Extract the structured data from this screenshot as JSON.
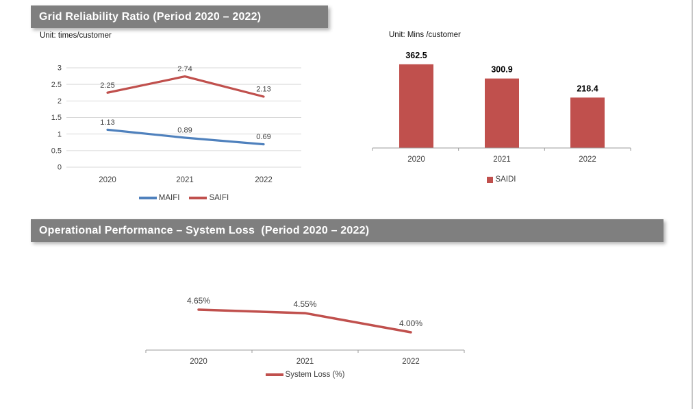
{
  "colors": {
    "header_bg": "#7f7f7f",
    "header_text": "#ffffff",
    "grid": "#d9d9d9",
    "axis": "#9b9b9b",
    "tick_text": "#404040",
    "data_label": "#404040",
    "bar_value_label": "#000000",
    "page_border": "#c6c6c6",
    "line_blue": "#4F81BD",
    "line_red": "#C0504D"
  },
  "sections": [
    {
      "title": "Grid Reliability Ratio (Period 2020 – 2022)"
    },
    {
      "title": "Operational Performance – System Loss  (Period 2020 – 2022)"
    }
  ],
  "units": {
    "left_chart": "Unit: times/customer",
    "right_chart": "Unit: Mins /customer"
  },
  "chart_data": [
    {
      "id": "grid-reliability-lines",
      "type": "line",
      "title": "Grid Reliability Ratio (Period 2020 – 2022)",
      "unit": "times/customer",
      "categories": [
        "2020",
        "2021",
        "2022"
      ],
      "series": [
        {
          "name": "MAIFI",
          "values": [
            1.13,
            0.89,
            0.69
          ],
          "labels": [
            "1.13",
            "0.89",
            "0.69"
          ],
          "color": "#4F81BD"
        },
        {
          "name": "SAIFI",
          "values": [
            2.25,
            2.74,
            2.13
          ],
          "labels": [
            "2.25",
            "2.74",
            "2.13"
          ],
          "color": "#C0504D"
        }
      ],
      "ylim": [
        0,
        3
      ],
      "yticks": [
        0,
        0.5,
        1,
        1.5,
        2,
        2.5,
        3
      ],
      "ytick_labels": [
        "0",
        "0.5",
        "1",
        "1.5",
        "2",
        "2.5",
        "3"
      ],
      "grid": true,
      "legend_position": "bottom"
    },
    {
      "id": "saidi-bars",
      "type": "bar",
      "title": "SAIDI",
      "unit": "Mins /customer",
      "categories": [
        "2020",
        "2021",
        "2022"
      ],
      "series": [
        {
          "name": "SAIDI",
          "values": [
            362.5,
            300.9,
            218.4
          ],
          "labels": [
            "362.5",
            "300.9",
            "218.4"
          ],
          "color": "#C0504D"
        }
      ],
      "ylim": [
        0,
        400
      ],
      "grid": false,
      "legend_position": "bottom"
    },
    {
      "id": "system-loss-line",
      "type": "line",
      "title": "Operational Performance – System Loss (Period 2020 – 2022)",
      "unit": "%",
      "categories": [
        "2020",
        "2021",
        "2022"
      ],
      "series": [
        {
          "name": "System Loss (%)",
          "values": [
            4.65,
            4.55,
            4.0
          ],
          "labels": [
            "4.65%",
            "4.55%",
            "4.00%"
          ],
          "color": "#C0504D"
        }
      ],
      "ylim": [
        3.5,
        4.9
      ],
      "grid": false,
      "legend_position": "bottom"
    }
  ]
}
